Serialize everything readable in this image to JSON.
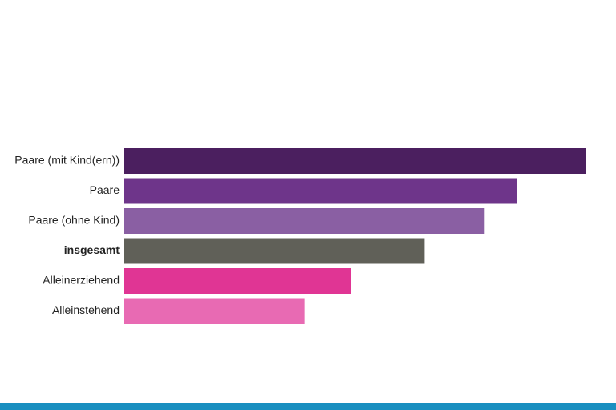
{
  "chart_data": {
    "type": "bar",
    "orientation": "horizontal",
    "categories": [
      "Paare (mit Kind(ern))",
      "Paare",
      "Paare (ohne Kind)",
      "insgesamt",
      "Alleinerziehend",
      "Alleinstehend"
    ],
    "values": [
      100,
      85,
      78,
      65,
      49,
      39
    ],
    "colors": [
      "#4b1f5f",
      "#6e358a",
      "#8a5fa3",
      "#606058",
      "#e03594",
      "#e86ab3"
    ],
    "bold": [
      false,
      false,
      false,
      true,
      false,
      false
    ],
    "xlim": [
      0,
      100
    ]
  }
}
